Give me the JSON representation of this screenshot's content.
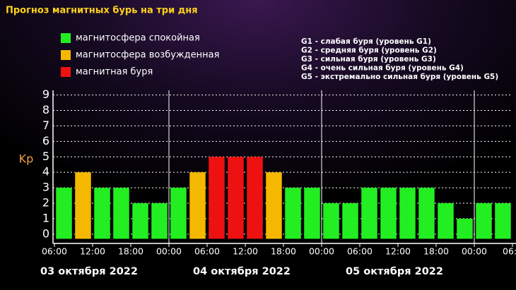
{
  "chart_data": {
    "type": "bar",
    "title": "Прогноз магнитных бурь на три дня",
    "ylabel": "Kp",
    "legend": [
      {
        "label": "магнитосфера спокойная",
        "color": "#22ee22"
      },
      {
        "label": "магнитосфера возбужденная",
        "color": "#f5b800"
      },
      {
        "label": "магнитная буря",
        "color": "#ee1111"
      }
    ],
    "scale_notes": [
      "G1 - слабая буря (уровень G1)",
      "G2 - средняя буря (уровень G2)",
      "G3 - сильная буря (уровень G3)",
      "G4 - очень сильная буря (уровень G4)",
      "G5 - экстремально сильная буря (уровень G5)"
    ],
    "days": [
      "03 октября 2022",
      "04 октября 2022",
      "05 октября 2022"
    ],
    "x": [
      7.5,
      10.5,
      13.5,
      16.5,
      19.5,
      22.5,
      25.5,
      28.5,
      31.5,
      34.5,
      37.5,
      40.5,
      43.5,
      46.5,
      49.5,
      52.5,
      55.5,
      58.5,
      61.5,
      64.5,
      67.5,
      70.5,
      73.5,
      76.5
    ],
    "values": [
      3,
      4,
      3,
      3,
      2,
      2,
      3,
      4,
      5,
      5,
      5,
      4,
      3,
      3,
      2,
      2,
      3,
      3,
      3,
      3,
      2,
      1,
      2,
      2
    ],
    "colors": [
      "#22ee22",
      "#f5b800",
      "#22ee22",
      "#22ee22",
      "#22ee22",
      "#22ee22",
      "#22ee22",
      "#f5b800",
      "#ee1111",
      "#ee1111",
      "#ee1111",
      "#f5b800",
      "#22ee22",
      "#22ee22",
      "#22ee22",
      "#22ee22",
      "#22ee22",
      "#22ee22",
      "#22ee22",
      "#22ee22",
      "#22ee22",
      "#22ee22",
      "#22ee22",
      "#22ee22"
    ],
    "xlim": [
      6,
      78
    ],
    "xticks": [
      {
        "value": 6,
        "label": "06:00"
      },
      {
        "value": 12,
        "label": "12:00"
      },
      {
        "value": 18,
        "label": "18:00"
      },
      {
        "value": 24,
        "label": "00:00"
      },
      {
        "value": 30,
        "label": "06:00"
      },
      {
        "value": 36,
        "label": "12:00"
      },
      {
        "value": 42,
        "label": "18:00"
      },
      {
        "value": 48,
        "label": "00:00"
      },
      {
        "value": 54,
        "label": "06:00"
      },
      {
        "value": 60,
        "label": "12:00"
      },
      {
        "value": 66,
        "label": "18:00"
      },
      {
        "value": 72,
        "label": "00:00"
      },
      {
        "value": 78,
        "label": "06:"
      }
    ],
    "ylim": [
      -0.6,
      9.3
    ],
    "yticks": [
      0,
      1,
      2,
      3,
      4,
      5,
      6,
      7,
      8,
      9
    ],
    "grid": true
  }
}
